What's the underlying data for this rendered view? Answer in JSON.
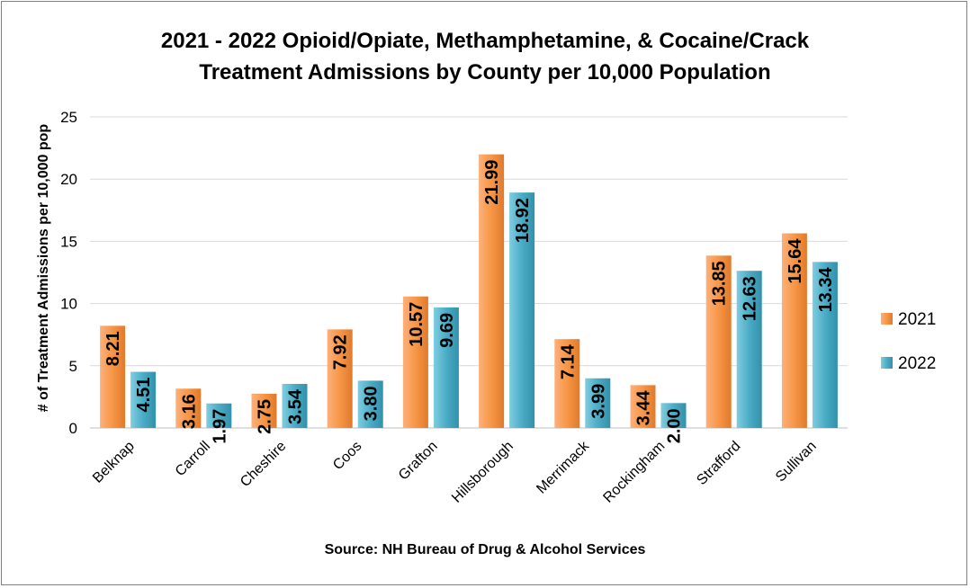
{
  "chart_data": {
    "type": "bar",
    "title": [
      "2021 - 2022 Opioid/Opiate, Methamphetamine, & Cocaine/Crack",
      "Treatment Admissions by County per 10,000 Population"
    ],
    "ylabel": "# of Treatment Admissions per 10,000 pop",
    "xlabel": "",
    "source": "Source: NH Bureau of Drug & Alcohol Services",
    "ylim": [
      0,
      25
    ],
    "yticks": [
      0,
      5,
      10,
      15,
      20,
      25
    ],
    "categories": [
      "Belknap",
      "Carroll",
      "Cheshire",
      "Coos",
      "Grafton",
      "Hillsborough",
      "Merrimack",
      "Rockingham",
      "Strafford",
      "Sullivan"
    ],
    "series": [
      {
        "name": "2021",
        "color": "#f79646",
        "values": [
          8.21,
          3.16,
          2.75,
          7.92,
          10.57,
          21.99,
          7.14,
          3.44,
          13.85,
          15.64
        ],
        "labels": [
          "8.21",
          "3.16",
          "2.75",
          "7.92",
          "10.57",
          "21.99",
          "7.14",
          "3.44",
          "13.85",
          "15.64"
        ]
      },
      {
        "name": "2022",
        "color": "#4bacc6",
        "values": [
          4.51,
          1.97,
          3.54,
          3.8,
          9.69,
          18.92,
          3.99,
          2.0,
          12.63,
          13.34
        ],
        "labels": [
          "4.51",
          "1.97",
          "3.54",
          "3.80",
          "9.69",
          "18.92",
          "3.99",
          "2.00",
          "12.63",
          "13.34"
        ]
      }
    ],
    "grid": true,
    "legend": "right",
    "data_labels": "inside-end-rotated"
  }
}
